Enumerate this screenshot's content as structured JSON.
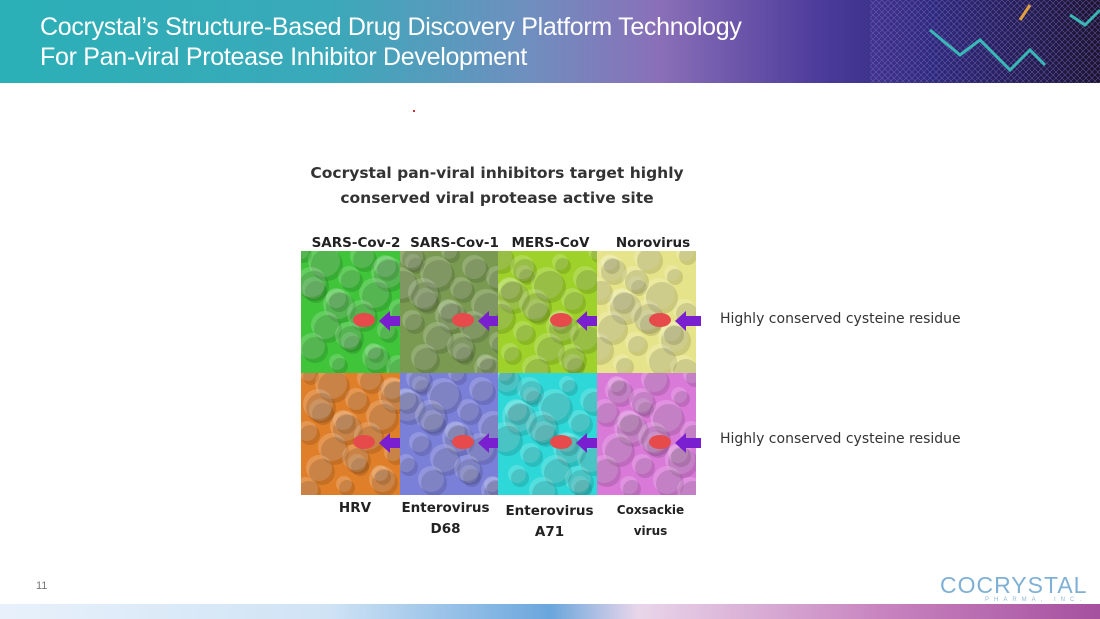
{
  "header": {
    "title_line1": "Cocrystal’s Structure-Based Drug Discovery Platform Technology",
    "title_line2": "For Pan-viral Protease Inhibitor Development"
  },
  "figure": {
    "heading_line1": "Cocrystal pan-viral inhibitors target highly",
    "heading_line2": "conserved viral protease active site",
    "top_row": [
      {
        "label": "SARS-Cov-2",
        "color": "#3fc43a"
      },
      {
        "label": "SARS-Cov-1",
        "color": "#7a9a52"
      },
      {
        "label": "MERS-CoV",
        "color": "#9ed12a"
      },
      {
        "label": "Norovirus",
        "color": "#e6e48a"
      }
    ],
    "bottom_row": [
      {
        "label": "HRV",
        "color": "#e07f2a"
      },
      {
        "label_line1": "Enterovirus",
        "label_line2": "D68",
        "color": "#7a7fd8"
      },
      {
        "label_line1": "Enterovirus",
        "label_line2": "A71",
        "color": "#2fd8d8"
      },
      {
        "label": "Coxsackie virus",
        "color": "#d97ad9"
      }
    ],
    "callout_top": "Highly conserved cysteine residue",
    "callout_bottom": "Highly conserved cysteine residue",
    "arrow_color": "#7a1fd0",
    "site_color": "#e64a4a"
  },
  "footer": {
    "page_number": "11",
    "logo_text": "COCRYSTAL",
    "logo_sub": "PHARMA, INC."
  }
}
